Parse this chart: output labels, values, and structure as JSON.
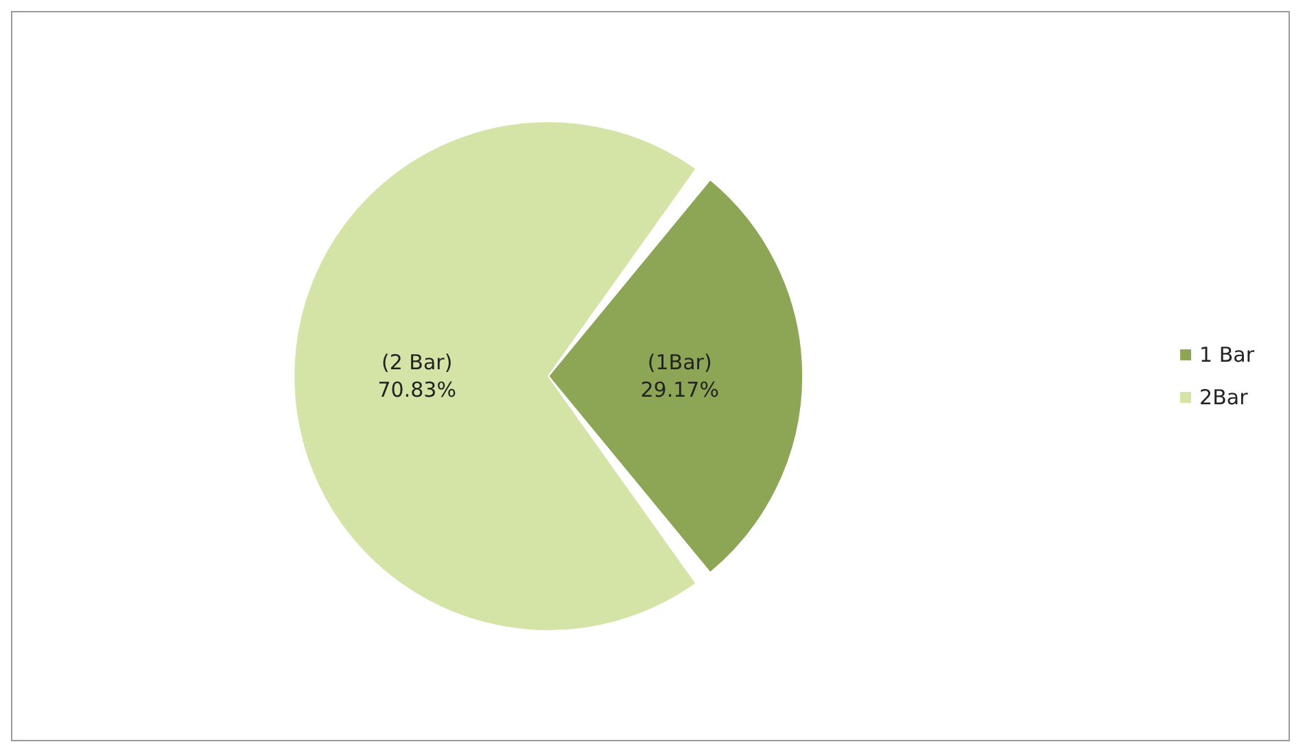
{
  "chart_data": {
    "type": "pie",
    "categories": [
      "1 Bar",
      "2Bar"
    ],
    "values": [
      29.17,
      70.83
    ],
    "colors": [
      "#8da656",
      "#d3e4a6"
    ],
    "value_labels": [
      "(1Bar)\n29.17%",
      "(2 Bar)\n70.83%"
    ],
    "legend": "right"
  }
}
